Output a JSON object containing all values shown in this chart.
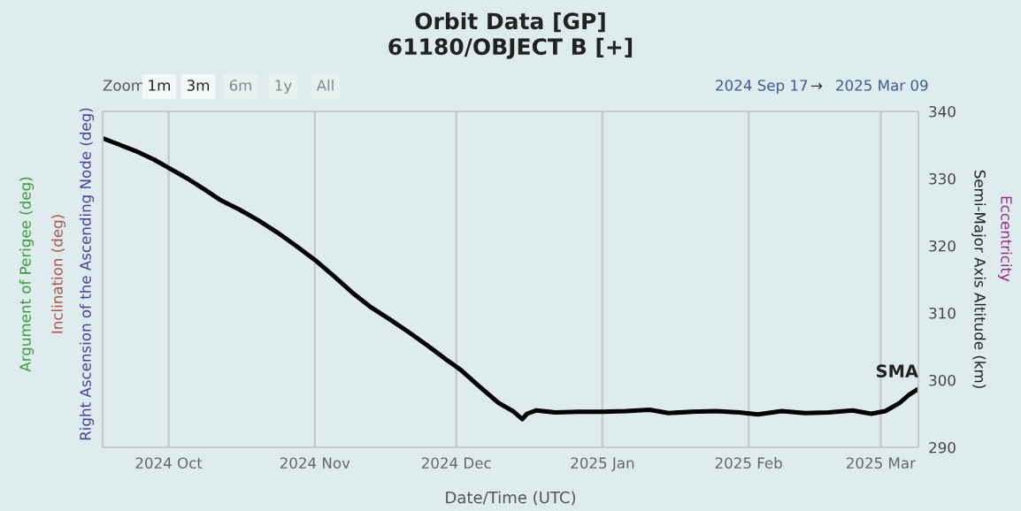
{
  "chart_data": {
    "type": "line",
    "title": "Orbit Data [GP]",
    "subtitle": "61180/OBJECT B [+]",
    "xlabel": "Date/Time (UTC)",
    "ylabel": "Semi-Major Axis Altitude (km)",
    "annotations": [
      "Argument of Perigee (deg)",
      "Inclination (deg)",
      "Right Ascension of the Ascending Node (deg)",
      "Eccentricity",
      "Zoom",
      "1m",
      "3m",
      "6m",
      "1y",
      "All",
      "2024 Sep 17",
      "→",
      "2025 Mar 09"
    ],
    "series": [
      {
        "name": "SMA",
        "color": "#000000",
        "x": [
          "2024-09-17",
          "2024-09-20",
          "2024-09-24",
          "2024-09-28",
          "2024-10-01",
          "2024-10-05",
          "2024-10-09",
          "2024-10-12",
          "2024-10-16",
          "2024-10-20",
          "2024-10-24",
          "2024-10-28",
          "2024-11-01",
          "2024-11-05",
          "2024-11-09",
          "2024-11-13",
          "2024-11-17",
          "2024-11-21",
          "2024-11-25",
          "2024-11-29",
          "2024-12-02",
          "2024-12-06",
          "2024-12-10",
          "2024-12-13",
          "2024-12-15",
          "2024-12-16",
          "2024-12-18",
          "2024-12-22",
          "2024-12-27",
          "2025-01-01",
          "2025-01-06",
          "2025-01-11",
          "2025-01-15",
          "2025-01-20",
          "2025-01-25",
          "2025-01-30",
          "2025-02-03",
          "2025-02-08",
          "2025-02-13",
          "2025-02-18",
          "2025-02-23",
          "2025-02-27",
          "2025-03-02",
          "2025-03-05",
          "2025-03-07",
          "2025-03-09"
        ],
        "values": [
          336.0,
          335.2,
          334.1,
          332.8,
          331.6,
          330.0,
          328.2,
          326.8,
          325.4,
          323.8,
          322.0,
          320.0,
          317.9,
          315.5,
          313.0,
          310.8,
          309.0,
          307.1,
          305.1,
          303.0,
          301.5,
          299.0,
          296.6,
          295.4,
          294.2,
          295.0,
          295.5,
          295.2,
          295.3,
          295.3,
          295.4,
          295.6,
          295.1,
          295.3,
          295.4,
          295.2,
          294.9,
          295.4,
          295.1,
          295.2,
          295.5,
          295.0,
          295.4,
          296.6,
          297.8,
          298.7
        ]
      }
    ],
    "xlim": [
      "2024-09-17",
      "2025-03-09"
    ],
    "xticks": [
      {
        "value": "2024-10-01",
        "label": "2024 Oct"
      },
      {
        "value": "2024-11-01",
        "label": "2024 Nov"
      },
      {
        "value": "2024-12-01",
        "label": "2024 Dec"
      },
      {
        "value": "2025-01-01",
        "label": "2025 Jan"
      },
      {
        "value": "2025-02-01",
        "label": "2025 Feb"
      },
      {
        "value": "2025-03-01",
        "label": "2025 Mar"
      }
    ],
    "ylim": [
      290,
      340
    ],
    "yticks": [
      290,
      300,
      310,
      320,
      330,
      340
    ],
    "grid": "x",
    "legend": false,
    "marker": "none",
    "line_style": "solid"
  }
}
